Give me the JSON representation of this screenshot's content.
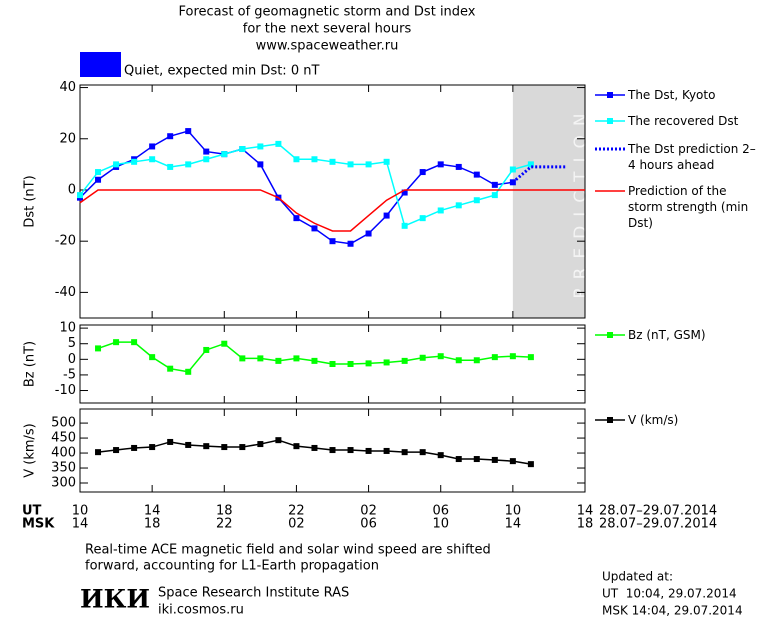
{
  "header": {
    "title_lines": [
      "Forecast of geomagnetic storm and Dst index",
      "for the next several hours",
      "www.spaceweather.ru"
    ],
    "status_color": "#0000ff",
    "status": "Quiet, expected min Dst: 0 nT"
  },
  "chart_data": [
    {
      "type": "line",
      "ylabel": "Dst (nT)",
      "xlim": [
        0,
        28
      ],
      "xticks": [
        0,
        4,
        8,
        12,
        16,
        20,
        24,
        28
      ],
      "ylim": [
        -50,
        41
      ],
      "yticks": [
        40,
        20,
        0,
        -20,
        -40
      ],
      "prediction_band": {
        "from": 24,
        "to": 28,
        "label": "PREDICTION",
        "color": "#d9d9d9"
      },
      "series": [
        {
          "name": "The Dst, Kyoto",
          "color": "#0000ff",
          "style": "square",
          "x": [
            0,
            1,
            2,
            3,
            4,
            5,
            6,
            7,
            8,
            9,
            10,
            11,
            12,
            13,
            14,
            15,
            16,
            17,
            18,
            19,
            20,
            21,
            22,
            23,
            24
          ],
          "values": [
            -3,
            4,
            9,
            12,
            17,
            21,
            23,
            15,
            14,
            16,
            10,
            -3,
            -11,
            -15,
            -20,
            -21,
            -17,
            -10,
            -1,
            7,
            10,
            9,
            6,
            2,
            3
          ]
        },
        {
          "name": "The recovered Dst",
          "color": "#00ffff",
          "style": "square",
          "x": [
            0,
            1,
            2,
            3,
            4,
            5,
            6,
            7,
            8,
            9,
            10,
            11,
            12,
            13,
            14,
            15,
            16,
            17,
            18,
            19,
            20,
            21,
            22,
            23,
            24,
            25
          ],
          "values": [
            -2,
            7,
            10,
            11,
            12,
            9,
            10,
            12,
            14,
            16,
            17,
            18,
            12,
            12,
            11,
            10,
            10,
            11,
            -14,
            -11,
            -8,
            -6,
            -4,
            -2,
            8,
            10
          ]
        },
        {
          "name": "The Dst prediction 2–4 hours ahead",
          "color": "#0000ff",
          "style": "dotted",
          "x": [
            24,
            25,
            27
          ],
          "values": [
            3,
            9,
            9
          ]
        },
        {
          "name": "Prediction of the storm strength (min Dst)",
          "color": "#ff0000",
          "style": "line",
          "x": [
            0,
            1,
            10,
            11,
            12,
            13,
            14,
            15,
            16,
            17,
            18,
            28
          ],
          "values": [
            -5,
            0,
            0,
            -3,
            -9,
            -13,
            -16,
            -16,
            -10,
            -4,
            0,
            0
          ]
        }
      ]
    },
    {
      "type": "line",
      "ylabel": "Bz (nT)",
      "xlim": [
        0,
        28
      ],
      "xticks": [
        0,
        4,
        8,
        12,
        16,
        20,
        24,
        28
      ],
      "ylim": [
        -14,
        11
      ],
      "yticks": [
        10,
        5,
        0,
        -5,
        -10
      ],
      "series": [
        {
          "name": "Bz (nT, GSM)",
          "color": "#00ff00",
          "style": "square",
          "x": [
            1,
            2,
            3,
            4,
            5,
            6,
            7,
            8,
            9,
            10,
            11,
            12,
            13,
            14,
            15,
            16,
            17,
            18,
            19,
            20,
            21,
            22,
            23,
            24,
            25
          ],
          "values": [
            3.5,
            5.5,
            5.5,
            0.7,
            -3,
            -4,
            3,
            5,
            0.3,
            0.3,
            -0.5,
            0.3,
            -0.5,
            -1.5,
            -1.5,
            -1.3,
            -1,
            -0.5,
            0.5,
            1,
            -0.3,
            -0.3,
            0.7,
            1,
            0.7
          ]
        }
      ]
    },
    {
      "type": "line",
      "ylabel": "V (km/s)",
      "xlim": [
        0,
        28
      ],
      "ylim": [
        270,
        547
      ],
      "yticks": [
        500,
        450,
        400,
        350,
        300
      ],
      "xticks": [
        {
          "value": 0,
          "label": "10"
        },
        {
          "value": 4,
          "label": "14"
        },
        {
          "value": 8,
          "label": "18"
        },
        {
          "value": 12,
          "label": "22"
        },
        {
          "value": 16,
          "label": "02"
        },
        {
          "value": 20,
          "label": "06"
        },
        {
          "value": 24,
          "label": "10"
        },
        {
          "value": 28,
          "label": "14"
        }
      ],
      "xticks_msk": [
        {
          "value": 0,
          "label": "14"
        },
        {
          "value": 4,
          "label": "18"
        },
        {
          "value": 8,
          "label": "22"
        },
        {
          "value": 12,
          "label": "02"
        },
        {
          "value": 16,
          "label": "06"
        },
        {
          "value": 20,
          "label": "10"
        },
        {
          "value": 24,
          "label": "14"
        },
        {
          "value": 28,
          "label": "18"
        }
      ],
      "ut_label": "UT",
      "msk_label": "MSK",
      "ut_dates": "28.07–29.07.2014",
      "msk_dates": "28.07–29.07.2014",
      "series": [
        {
          "name": "V (km/s)",
          "color": "#000000",
          "style": "square",
          "x": [
            1,
            2,
            3,
            4,
            5,
            6,
            7,
            8,
            9,
            10,
            11,
            12,
            13,
            14,
            15,
            16,
            17,
            18,
            19,
            20,
            21,
            22,
            23,
            24,
            25
          ],
          "values": [
            403,
            410,
            417,
            420,
            437,
            427,
            423,
            420,
            420,
            430,
            443,
            423,
            417,
            410,
            410,
            407,
            407,
            403,
            403,
            393,
            380,
            380,
            377,
            373,
            363
          ]
        }
      ]
    }
  ],
  "footer": {
    "note_lines": [
      "Real-time ACE magnetic field and solar wind speed are shifted",
      "forward, accounting for L1-Earth propagation"
    ],
    "logo": "ИКИ",
    "institute": "Space Research Institute RAS",
    "site": "iki.cosmos.ru",
    "updated": "Updated at:",
    "updated_ut": "UT  10:04, 29.07.2014",
    "updated_msk": "MSK 14:04, 29.07.2014"
  }
}
